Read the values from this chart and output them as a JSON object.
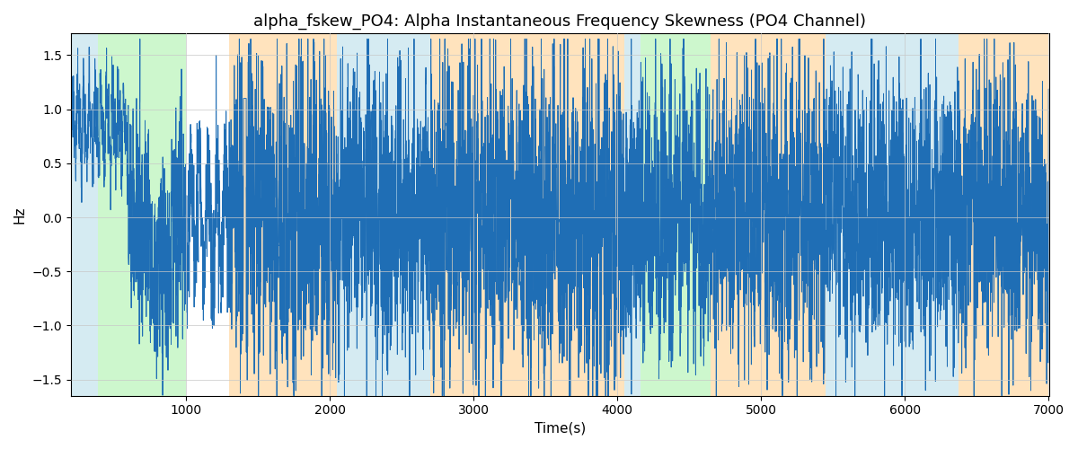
{
  "title": "alpha_fskew_PO4: Alpha Instantaneous Frequency Skewness (PO4 Channel)",
  "xlabel": "Time(s)",
  "ylabel": "Hz",
  "xlim": [
    200,
    7000
  ],
  "ylim": [
    -1.65,
    1.7
  ],
  "line_color": "#1f6eb5",
  "line_width": 0.7,
  "regions": [
    {
      "xmin": 200,
      "xmax": 390,
      "color": "#add8e6",
      "alpha": 0.5
    },
    {
      "xmin": 390,
      "xmax": 1000,
      "color": "#90ee90",
      "alpha": 0.45
    },
    {
      "xmin": 1000,
      "xmax": 1300,
      "color": "#ffffff",
      "alpha": 0.0
    },
    {
      "xmin": 1300,
      "xmax": 2050,
      "color": "#ffc87c",
      "alpha": 0.5
    },
    {
      "xmin": 2050,
      "xmax": 2700,
      "color": "#add8e6",
      "alpha": 0.5
    },
    {
      "xmin": 2700,
      "xmax": 4050,
      "color": "#ffc87c",
      "alpha": 0.5
    },
    {
      "xmin": 4050,
      "xmax": 4160,
      "color": "#add8e6",
      "alpha": 0.5
    },
    {
      "xmin": 4160,
      "xmax": 4650,
      "color": "#90ee90",
      "alpha": 0.45
    },
    {
      "xmin": 4650,
      "xmax": 5000,
      "color": "#ffc87c",
      "alpha": 0.5
    },
    {
      "xmin": 5000,
      "xmax": 5450,
      "color": "#ffc87c",
      "alpha": 0.5
    },
    {
      "xmin": 5450,
      "xmax": 6370,
      "color": "#add8e6",
      "alpha": 0.5
    },
    {
      "xmin": 6370,
      "xmax": 7000,
      "color": "#ffc87c",
      "alpha": 0.5
    }
  ],
  "xticks": [
    1000,
    2000,
    3000,
    4000,
    5000,
    6000,
    7000
  ],
  "yticks": [
    -1.5,
    -1.0,
    -0.5,
    0.0,
    0.5,
    1.0,
    1.5
  ],
  "title_fontsize": 13,
  "seed": 2023,
  "n_points": 6800
}
